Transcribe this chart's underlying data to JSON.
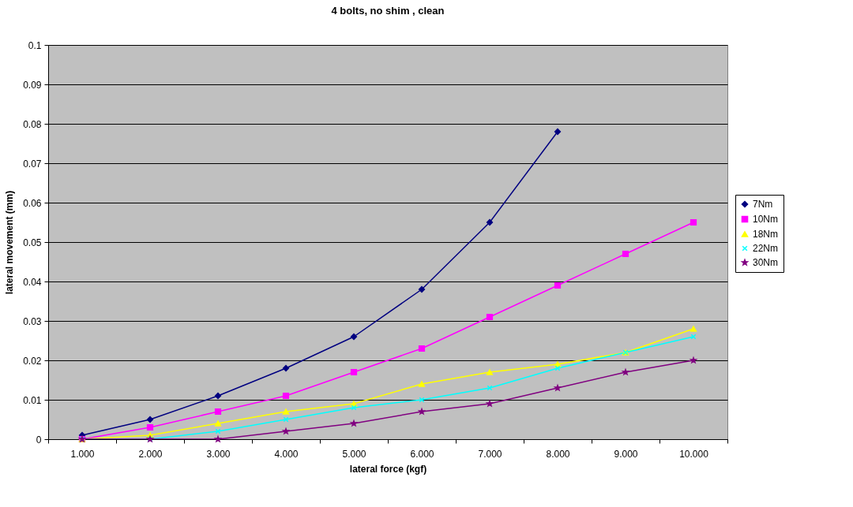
{
  "chart_data": {
    "type": "line",
    "title": "4 bolts, no shim , clean",
    "xlabel": "lateral force (kgf)",
    "ylabel": "lateral movement (mm)",
    "categories": [
      "1.000",
      "2.000",
      "3.000",
      "4.000",
      "5.000",
      "6.000",
      "7.000",
      "8.000",
      "9.000",
      "10.000"
    ],
    "series": [
      {
        "name": "7Nm",
        "color": "#000080",
        "marker": "diamond",
        "values": [
          0.001,
          0.005,
          0.011,
          0.018,
          0.026,
          0.038,
          0.055,
          0.078,
          null,
          null
        ]
      },
      {
        "name": "10Nm",
        "color": "#ff00ff",
        "marker": "square",
        "values": [
          0,
          0.003,
          0.007,
          0.011,
          0.017,
          0.023,
          0.031,
          0.039,
          0.047,
          0.055
        ]
      },
      {
        "name": "18Nm",
        "color": "#ffff00",
        "marker": "triangle",
        "values": [
          0,
          0.001,
          0.004,
          0.007,
          0.009,
          0.014,
          0.017,
          0.019,
          0.022,
          0.028
        ]
      },
      {
        "name": "22Nm",
        "color": "#00ffff",
        "marker": "cross",
        "values": [
          0,
          0,
          0.002,
          0.005,
          0.008,
          0.01,
          0.013,
          0.018,
          0.022,
          0.026
        ]
      },
      {
        "name": "30Nm",
        "color": "#800080",
        "marker": "star",
        "values": [
          0,
          0,
          0,
          0.002,
          0.004,
          0.007,
          0.009,
          0.013,
          0.017,
          0.02
        ]
      }
    ],
    "ylim": [
      0,
      0.1
    ],
    "yticks": [
      0,
      0.01,
      0.02,
      0.03,
      0.04,
      0.05,
      0.06,
      0.07,
      0.08,
      0.09,
      0.1
    ],
    "grid": "y",
    "legend": "right",
    "line_style": "solid"
  }
}
